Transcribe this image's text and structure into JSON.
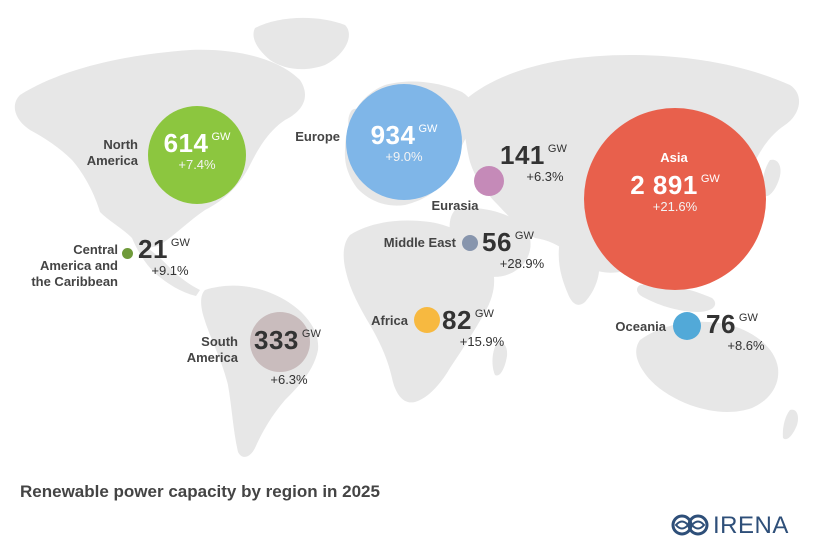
{
  "title": "Renewable power capacity by region in 2025",
  "unit": "GW",
  "colors": {
    "land": "#e7e7e7",
    "north_america": "#8cc63f",
    "europe": "#7fb6e8",
    "asia": "#e8604c",
    "eurasia": "#c58ab8",
    "middle_east": "#8795ad",
    "africa": "#f7b940",
    "oceania": "#52a9d8",
    "central_america": "#6f9a3a",
    "south_america": "#c9bcbd",
    "logo": "#2e4f79"
  },
  "regions": {
    "north_america": {
      "name": "North\nAmerica",
      "value": "614",
      "change": "+7.4%"
    },
    "europe": {
      "name": "Europe",
      "value": "934",
      "change": "+9.0%"
    },
    "eurasia": {
      "name": "Eurasia",
      "value": "141",
      "change": "+6.3%"
    },
    "asia": {
      "name": "Asia",
      "value": "2 891",
      "change": "+21.6%"
    },
    "middle_east": {
      "name": "Middle East",
      "value": "56",
      "change": "+28.9%"
    },
    "central_america": {
      "name": "Central\nAmerica and\nthe Caribbean",
      "value": "21",
      "change": "+9.1%"
    },
    "africa": {
      "name": "Africa",
      "value": "82",
      "change": "+15.9%"
    },
    "south_america": {
      "name": "South\nAmerica",
      "value": "333",
      "change": "+6.3%"
    },
    "oceania": {
      "name": "Oceania",
      "value": "76",
      "change": "+8.6%"
    }
  },
  "logo": {
    "text": "IRENA",
    "icon": "irena-logo-icon"
  }
}
